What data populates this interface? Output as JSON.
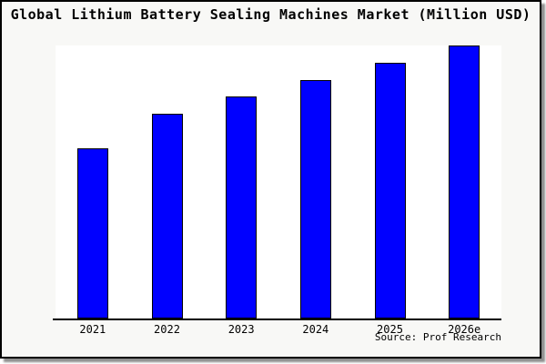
{
  "frame": {
    "background": "#f8f8f6",
    "border_color": "#000000",
    "shadow_color": "#8f8f8f"
  },
  "chart_data": {
    "type": "bar",
    "title": "Global Lithium Battery Sealing Machines Market (Million USD)",
    "categories": [
      "2021",
      "2022",
      "2023",
      "2024",
      "2025",
      "2026e"
    ],
    "values": [
      10,
      12,
      13,
      14,
      15,
      16
    ],
    "value_units": "relative units (no y-axis labels shown; heights estimated from bars)",
    "xlabel": "",
    "ylabel": "",
    "ylim": [
      0,
      16
    ],
    "grid": false,
    "legend": false,
    "bar_fill": "#0000ff",
    "bar_border": "#000000",
    "plot_background": "#ffffff",
    "axis_line_color": "#000000"
  },
  "source": {
    "label": "Source: Prof Research"
  }
}
